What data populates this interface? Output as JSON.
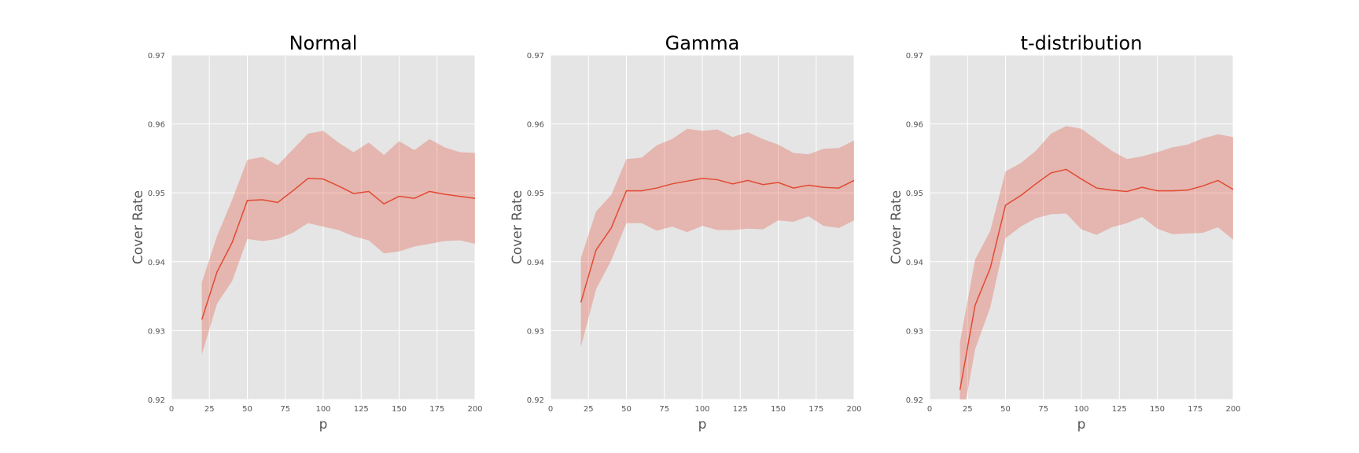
{
  "chart_data": [
    {
      "type": "line",
      "title": "Normal",
      "xlabel": "p",
      "ylabel": "Cover Rate",
      "xlim": [
        0,
        200
      ],
      "ylim": [
        0.92,
        0.97
      ],
      "xticks": [
        "0",
        "25",
        "50",
        "75",
        "100",
        "125",
        "150",
        "175",
        "200"
      ],
      "yticks": [
        "0.92",
        "0.93",
        "0.94",
        "0.95",
        "0.96",
        "0.97"
      ],
      "grid": true,
      "color": "#e24a33",
      "x": [
        20,
        30,
        40,
        50,
        60,
        70,
        80,
        90,
        100,
        110,
        120,
        130,
        140,
        150,
        160,
        170,
        180,
        190,
        200
      ],
      "series": [
        {
          "values": [
            0.9316,
            0.9385,
            0.9428,
            0.9489,
            0.949,
            0.9486,
            0.9503,
            0.9521,
            0.952,
            0.951,
            0.9499,
            0.9502,
            0.9484,
            0.9495,
            0.9492,
            0.9502,
            0.9498,
            0.9495,
            0.9492
          ],
          "lower": [
            0.9265,
            0.9339,
            0.9372,
            0.9433,
            0.943,
            0.9433,
            0.9442,
            0.9456,
            0.9451,
            0.9446,
            0.9437,
            0.9431,
            0.9412,
            0.9415,
            0.9422,
            0.9426,
            0.943,
            0.9431,
            0.9426
          ],
          "upper": [
            0.937,
            0.9437,
            0.949,
            0.9548,
            0.9552,
            0.954,
            0.9563,
            0.9586,
            0.959,
            0.9573,
            0.9559,
            0.9573,
            0.9555,
            0.9575,
            0.9562,
            0.9578,
            0.9566,
            0.9559,
            0.9558
          ]
        }
      ]
    },
    {
      "type": "line",
      "title": "Gamma",
      "xlabel": "p",
      "ylabel": "Cover Rate",
      "xlim": [
        0,
        200
      ],
      "ylim": [
        0.92,
        0.97
      ],
      "xticks": [
        "0",
        "25",
        "50",
        "75",
        "100",
        "125",
        "150",
        "175",
        "200"
      ],
      "yticks": [
        "0.92",
        "0.93",
        "0.94",
        "0.95",
        "0.96",
        "0.97"
      ],
      "grid": true,
      "color": "#e24a33",
      "x": [
        20,
        30,
        40,
        50,
        60,
        70,
        80,
        90,
        100,
        110,
        120,
        130,
        140,
        150,
        160,
        170,
        180,
        190,
        200
      ],
      "series": [
        {
          "values": [
            0.9341,
            0.9417,
            0.9449,
            0.9503,
            0.9503,
            0.9507,
            0.9513,
            0.9517,
            0.9521,
            0.9519,
            0.9513,
            0.9518,
            0.9512,
            0.9515,
            0.9507,
            0.9511,
            0.9508,
            0.9507,
            0.9518
          ],
          "lower": [
            0.9276,
            0.936,
            0.9402,
            0.9456,
            0.9456,
            0.9445,
            0.9451,
            0.9443,
            0.9452,
            0.9446,
            0.9446,
            0.9448,
            0.9447,
            0.946,
            0.9458,
            0.9466,
            0.9452,
            0.9449,
            0.946
          ],
          "upper": [
            0.9405,
            0.9473,
            0.9497,
            0.9549,
            0.9551,
            0.9569,
            0.9578,
            0.9593,
            0.959,
            0.9592,
            0.9581,
            0.9588,
            0.9578,
            0.957,
            0.9558,
            0.9556,
            0.9564,
            0.9565,
            0.9576
          ]
        }
      ]
    },
    {
      "type": "line",
      "title": "t-distribution",
      "xlabel": "p",
      "ylabel": "Cover Rate",
      "xlim": [
        0,
        200
      ],
      "ylim": [
        0.92,
        0.97
      ],
      "xticks": [
        "0",
        "25",
        "50",
        "75",
        "100",
        "125",
        "150",
        "175",
        "200"
      ],
      "yticks": [
        "0.92",
        "0.93",
        "0.94",
        "0.95",
        "0.96",
        "0.97"
      ],
      "grid": true,
      "color": "#e24a33",
      "x": [
        20,
        30,
        40,
        50,
        60,
        70,
        80,
        90,
        100,
        110,
        120,
        130,
        140,
        150,
        160,
        170,
        180,
        190,
        200
      ],
      "series": [
        {
          "values": [
            0.9214,
            0.9337,
            0.9391,
            0.9482,
            0.9496,
            0.9513,
            0.9529,
            0.9534,
            0.952,
            0.9507,
            0.9504,
            0.9502,
            0.9508,
            0.9503,
            0.9503,
            0.9504,
            0.951,
            0.9518,
            0.9505
          ],
          "lower": [
            0.915,
            0.9273,
            0.9334,
            0.9434,
            0.9451,
            0.9463,
            0.9469,
            0.947,
            0.9447,
            0.9439,
            0.945,
            0.9456,
            0.9465,
            0.9448,
            0.944,
            0.9441,
            0.9442,
            0.945,
            0.9432
          ],
          "upper": [
            0.9283,
            0.9403,
            0.9445,
            0.9531,
            0.9543,
            0.9561,
            0.9586,
            0.9597,
            0.9593,
            0.9577,
            0.9561,
            0.9549,
            0.9553,
            0.9559,
            0.9566,
            0.957,
            0.9579,
            0.9585,
            0.9581
          ]
        }
      ]
    }
  ]
}
